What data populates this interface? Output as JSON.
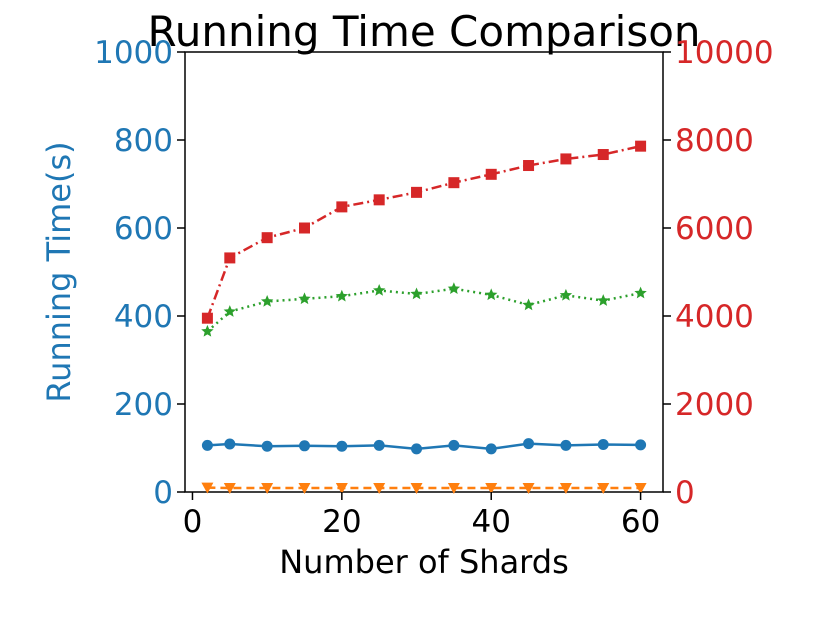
{
  "chart_data": {
    "type": "line",
    "title": "Running Time Comparison",
    "xlabel": "Number of Shards",
    "ylabel_left": "Running Time(s)",
    "ylabel_right": "",
    "xlim": [
      -1,
      63
    ],
    "ylim_left": [
      0,
      1000
    ],
    "ylim_right": [
      0,
      10000
    ],
    "x_ticks": [
      0,
      20,
      40,
      60
    ],
    "y_ticks_left": [
      0,
      200,
      400,
      600,
      800,
      1000
    ],
    "y_ticks_right": [
      0,
      2000,
      4000,
      6000,
      8000,
      10000
    ],
    "grid": false,
    "x": [
      2,
      5,
      10,
      15,
      20,
      25,
      30,
      35,
      40,
      45,
      50,
      55,
      60
    ],
    "series": [
      {
        "axis": "left",
        "color": "#1f77b4",
        "marker": "circle",
        "linestyle": "solid",
        "values": [
          106,
          109,
          104,
          105,
          104,
          106,
          98,
          106,
          98,
          110,
          106,
          108,
          107
        ]
      },
      {
        "axis": "left",
        "color": "#ff7f0e",
        "marker": "triangle-down",
        "linestyle": "dashed",
        "values": [
          10,
          9,
          9,
          9,
          9,
          9,
          9,
          9,
          9,
          9,
          9,
          9,
          9
        ]
      },
      {
        "axis": "right",
        "color": "#2ca02c",
        "marker": "star",
        "linestyle": "dotted",
        "values": [
          3650,
          4100,
          4330,
          4390,
          4450,
          4580,
          4500,
          4620,
          4480,
          4250,
          4470,
          4350,
          4520
        ]
      },
      {
        "axis": "right",
        "color": "#d62728",
        "marker": "square",
        "linestyle": "dashdot",
        "values": [
          3950,
          5320,
          5780,
          6000,
          6480,
          6640,
          6810,
          7030,
          7220,
          7420,
          7570,
          7670,
          7860
        ]
      }
    ],
    "left_axis_color": "#1f77b4",
    "right_axis_color": "#d62728"
  }
}
